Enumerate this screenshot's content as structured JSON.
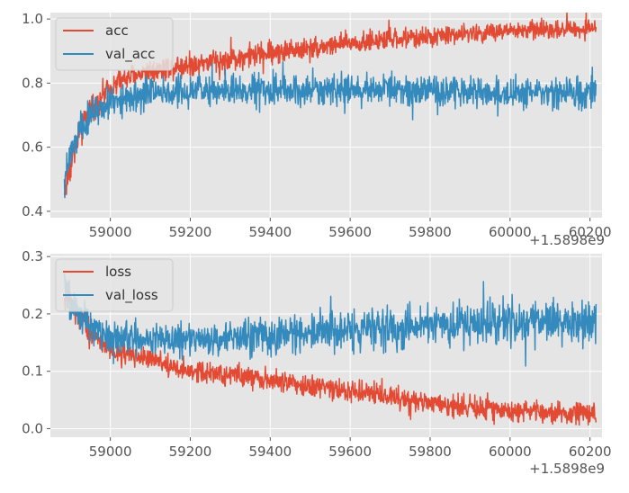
{
  "colors": {
    "background": "#e5e5e5",
    "grid": "#ffffff",
    "tick_text": "#555555",
    "acc": "#e24a33",
    "val_acc": "#348abd",
    "loss": "#e24a33",
    "val_loss": "#348abd"
  },
  "chart_data": [
    {
      "type": "line",
      "title": "",
      "xlabel": "",
      "ylabel": "",
      "x_offset_label": "+1.5898e9",
      "xlim": [
        58850,
        60230
      ],
      "ylim": [
        0.38,
        1.02
      ],
      "xticks": [
        59000,
        59200,
        59400,
        59600,
        59800,
        60000,
        60200
      ],
      "yticks": [
        0.4,
        0.6,
        0.8,
        1.0
      ],
      "ytick_labels": [
        "0.4",
        "0.6",
        "0.8",
        "1.0"
      ],
      "grid": true,
      "legend": "top-left",
      "series": [
        {
          "name": "acc",
          "color": "#e24a33",
          "x": [
            58885,
            58900,
            58925,
            58950,
            59000,
            59050,
            59100,
            59200,
            59300,
            59400,
            59500,
            59600,
            59700,
            59800,
            59900,
            60000,
            60100,
            60215
          ],
          "mean": [
            0.45,
            0.55,
            0.65,
            0.72,
            0.79,
            0.82,
            0.84,
            0.86,
            0.875,
            0.895,
            0.91,
            0.925,
            0.935,
            0.945,
            0.955,
            0.962,
            0.968,
            0.972
          ],
          "spread": [
            0.05,
            0.06,
            0.05,
            0.04,
            0.04,
            0.04,
            0.04,
            0.04,
            0.04,
            0.04,
            0.035,
            0.035,
            0.035,
            0.03,
            0.03,
            0.03,
            0.03,
            0.03
          ]
        },
        {
          "name": "val_acc",
          "color": "#348abd",
          "x": [
            58885,
            58900,
            58925,
            58950,
            59000,
            59050,
            59100,
            59200,
            59300,
            59400,
            59500,
            59600,
            59700,
            59800,
            59900,
            60000,
            60100,
            60215
          ],
          "mean": [
            0.48,
            0.58,
            0.66,
            0.7,
            0.74,
            0.76,
            0.77,
            0.775,
            0.78,
            0.78,
            0.78,
            0.78,
            0.78,
            0.775,
            0.775,
            0.77,
            0.77,
            0.765
          ],
          "spread": [
            0.06,
            0.06,
            0.05,
            0.05,
            0.05,
            0.05,
            0.05,
            0.05,
            0.05,
            0.05,
            0.05,
            0.05,
            0.05,
            0.05,
            0.05,
            0.05,
            0.05,
            0.05
          ]
        }
      ]
    },
    {
      "type": "line",
      "title": "",
      "xlabel": "",
      "ylabel": "",
      "x_offset_label": "+1.5898e9",
      "xlim": [
        58850,
        60230
      ],
      "ylim": [
        -0.015,
        0.305
      ],
      "xticks": [
        59000,
        59200,
        59400,
        59600,
        59800,
        60000,
        60200
      ],
      "yticks": [
        0.0,
        0.1,
        0.2,
        0.3
      ],
      "ytick_labels": [
        "0.0",
        "0.1",
        "0.2",
        "0.3"
      ],
      "grid": true,
      "legend": "top-left",
      "series": [
        {
          "name": "loss",
          "color": "#e24a33",
          "x": [
            58885,
            58900,
            58950,
            59000,
            59100,
            59200,
            59300,
            59400,
            59500,
            59600,
            59700,
            59800,
            59900,
            60000,
            60100,
            60215
          ],
          "mean": [
            0.24,
            0.22,
            0.17,
            0.14,
            0.12,
            0.1,
            0.095,
            0.085,
            0.075,
            0.065,
            0.055,
            0.045,
            0.038,
            0.032,
            0.028,
            0.025
          ],
          "spread": [
            0.03,
            0.03,
            0.025,
            0.02,
            0.02,
            0.02,
            0.02,
            0.02,
            0.02,
            0.02,
            0.02,
            0.02,
            0.02,
            0.02,
            0.02,
            0.02
          ]
        },
        {
          "name": "val_loss",
          "color": "#348abd",
          "x": [
            58885,
            58900,
            58950,
            59000,
            59100,
            59200,
            59300,
            59400,
            59500,
            59600,
            59700,
            59800,
            59900,
            60000,
            60100,
            60215
          ],
          "mean": [
            0.24,
            0.22,
            0.18,
            0.16,
            0.155,
            0.155,
            0.158,
            0.162,
            0.168,
            0.172,
            0.176,
            0.18,
            0.183,
            0.185,
            0.186,
            0.187
          ],
          "spread": [
            0.035,
            0.035,
            0.03,
            0.03,
            0.03,
            0.03,
            0.032,
            0.034,
            0.035,
            0.036,
            0.037,
            0.038,
            0.039,
            0.04,
            0.04,
            0.04
          ]
        }
      ]
    }
  ]
}
